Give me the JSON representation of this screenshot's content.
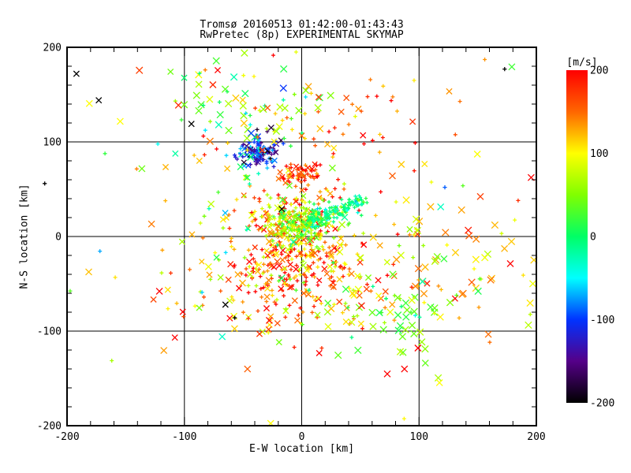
{
  "chart_data": {
    "type": "scatter",
    "title": "Tromsø 20160513 01:42:00-01:43:43",
    "subtitle": "RwPretec (8p) EXPERIMENTAL SKYMAP",
    "xlabel": "E-W location [km]",
    "ylabel": "N-S location [km]",
    "xlim": [
      -200,
      200
    ],
    "ylim": [
      -200,
      200
    ],
    "x_major_ticks": [
      -200,
      -100,
      0,
      100,
      200
    ],
    "y_major_ticks": [
      -200,
      -100,
      0,
      100,
      200
    ],
    "minor_tick_step": 20,
    "grid_values": [
      -100,
      0,
      100
    ],
    "grid_on": true,
    "colorbar": {
      "label": "[m/s]",
      "range": [
        -200,
        200
      ],
      "ticks": [
        200,
        100,
        0,
        -100,
        -200
      ],
      "stops": [
        {
          "t": 0.0,
          "rgb": [
            0,
            0,
            0
          ]
        },
        {
          "t": 0.125,
          "rgb": [
            85,
            0,
            136
          ]
        },
        {
          "t": 0.25,
          "rgb": [
            0,
            51,
            255
          ]
        },
        {
          "t": 0.375,
          "rgb": [
            0,
            255,
            255
          ]
        },
        {
          "t": 0.5,
          "rgb": [
            0,
            255,
            102
          ]
        },
        {
          "t": 0.625,
          "rgb": [
            128,
            255,
            0
          ]
        },
        {
          "t": 0.75,
          "rgb": [
            255,
            255,
            0
          ]
        },
        {
          "t": 0.875,
          "rgb": [
            255,
            102,
            0
          ]
        },
        {
          "t": 1.0,
          "rgb": [
            255,
            0,
            0
          ]
        }
      ]
    },
    "markers": [
      "plus",
      "cross"
    ],
    "clusters": [
      {
        "name": "core-warm",
        "shape": "gauss",
        "n": 300,
        "cx": -8,
        "cy": -10,
        "sx": 26,
        "sy": 32,
        "v_mean": 150,
        "v_sd": 50,
        "cross_frac": 0.18,
        "size_plus": 2.5,
        "size_cross": 3.2,
        "seed": 11
      },
      {
        "name": "core-green",
        "shape": "gauss",
        "n": 230,
        "cx": 1,
        "cy": 13,
        "sx": 14,
        "sy": 11,
        "v_mean": 60,
        "v_sd": 40,
        "cross_frac": 0.12,
        "size_plus": 2.5,
        "size_cross": 3.2,
        "seed": 22
      },
      {
        "name": "teal-streak",
        "shape": "line",
        "n": 130,
        "x1": 4,
        "y1": 12,
        "x2": 50,
        "y2": 38,
        "jitter": 4,
        "v_mean": -5,
        "v_sd": 25,
        "cross_frac": 0.05,
        "size_plus": 2.3,
        "size_cross": 3.2,
        "seed": 33
      },
      {
        "name": "blue-knot",
        "shape": "gauss",
        "n": 115,
        "cx": -38,
        "cy": 88,
        "sx": 9,
        "sy": 7,
        "v_mean": -110,
        "v_sd": 40,
        "cross_frac": 0.2,
        "size_plus": 2.5,
        "size_cross": 3.2,
        "seed": 44
      },
      {
        "name": "red-knot",
        "shape": "gauss",
        "n": 55,
        "cx": -2,
        "cy": 66,
        "sx": 8,
        "sy": 5,
        "v_mean": 170,
        "v_sd": 30,
        "cross_frac": 0.25,
        "size_plus": 2.5,
        "size_cross": 3.2,
        "seed": 55
      },
      {
        "name": "north-green",
        "shape": "gauss",
        "n": 55,
        "cx": -45,
        "cy": 140,
        "sx": 30,
        "sy": 22,
        "v_mean": 30,
        "v_sd": 50,
        "cross_frac": 0.6,
        "size_plus": 2.5,
        "size_cross": 4.2,
        "seed": 66
      },
      {
        "name": "north-warm",
        "shape": "gauss",
        "n": 45,
        "cx": 40,
        "cy": 120,
        "sx": 45,
        "sy": 25,
        "v_mean": 160,
        "v_sd": 40,
        "cross_frac": 0.3,
        "size_plus": 2.5,
        "size_cross": 3.6,
        "seed": 77
      },
      {
        "name": "south-warm",
        "shape": "gauss",
        "n": 150,
        "cx": 10,
        "cy": -55,
        "sx": 55,
        "sy": 30,
        "v_mean": 150,
        "v_sd": 45,
        "cross_frac": 0.45,
        "size_plus": 2.5,
        "size_cross": 3.6,
        "seed": 88
      },
      {
        "name": "east-yellow",
        "shape": "gauss",
        "n": 60,
        "cx": 120,
        "cy": -30,
        "sx": 45,
        "sy": 45,
        "v_mean": 110,
        "v_sd": 30,
        "cross_frac": 0.7,
        "size_plus": 2.5,
        "size_cross": 4.2,
        "seed": 99
      },
      {
        "name": "southeast-green",
        "shape": "gauss",
        "n": 55,
        "cx": 85,
        "cy": -80,
        "sx": 28,
        "sy": 20,
        "v_mean": 40,
        "v_sd": 35,
        "cross_frac": 0.8,
        "size_plus": 2.5,
        "size_cross": 4.2,
        "seed": 111
      },
      {
        "name": "field-sparse",
        "shape": "gauss",
        "n": 130,
        "cx": 0,
        "cy": 25,
        "sx": 110,
        "sy": 95,
        "v_mean": 100,
        "v_sd": 70,
        "cross_frac": 0.5,
        "size_plus": 2.5,
        "size_cross": 4.0,
        "seed": 122
      },
      {
        "name": "west-sparse",
        "shape": "gauss",
        "n": 40,
        "cx": -75,
        "cy": 40,
        "sx": 30,
        "sy": 60,
        "v_mean": 80,
        "v_sd": 70,
        "cross_frac": 0.4,
        "size_plus": 2.5,
        "size_cross": 3.6,
        "seed": 133
      }
    ],
    "outlier_points": [
      {
        "x": -192,
        "y": 172,
        "v": -200,
        "marker": "cross"
      },
      {
        "x": -173,
        "y": 144,
        "v": -200,
        "marker": "cross"
      },
      {
        "x": -94,
        "y": 119,
        "v": -200,
        "marker": "cross"
      },
      {
        "x": -65,
        "y": -72,
        "v": -200,
        "marker": "cross"
      },
      {
        "x": -57,
        "y": -86,
        "v": -200,
        "marker": "plus"
      },
      {
        "x": -38,
        "y": 113,
        "v": -185,
        "marker": "plus"
      },
      {
        "x": -26,
        "y": 115,
        "v": -180,
        "marker": "cross"
      },
      {
        "x": -17,
        "y": 29,
        "v": -200,
        "marker": "cross"
      },
      {
        "x": 173,
        "y": 177,
        "v": -200,
        "marker": "plus"
      },
      {
        "x": 122,
        "y": 52,
        "v": -90,
        "marker": "plus"
      },
      {
        "x": -85,
        "y": -59,
        "v": -60,
        "marker": "plus"
      },
      {
        "x": -219,
        "y": 56,
        "v": -200,
        "marker": "plus"
      }
    ]
  }
}
